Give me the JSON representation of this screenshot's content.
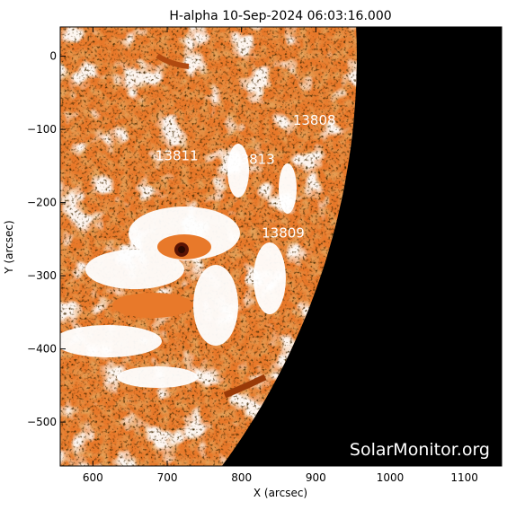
{
  "title": "H-alpha 10-Sep-2024 06:03:16.000",
  "xlabel": "X (arcsec)",
  "ylabel": "Y (arcsec)",
  "xlim": [
    556,
    1150
  ],
  "ylim": [
    -560,
    40
  ],
  "xticks": [
    600,
    700,
    800,
    900,
    1000,
    1100
  ],
  "yticks": [
    0,
    -100,
    -200,
    -300,
    -400,
    -500
  ],
  "xtick_labels": [
    "600",
    "700",
    "800",
    "900",
    "1000",
    "1100"
  ],
  "ytick_labels": [
    "0",
    "−100",
    "−200",
    "−300",
    "−400",
    "−500"
  ],
  "active_regions": [
    {
      "number": "13808",
      "x": 898,
      "y": -94
    },
    {
      "number": "13811",
      "x": 713,
      "y": -142
    },
    {
      "number": "13813",
      "x": 816,
      "y": -147
    },
    {
      "number": "13809",
      "x": 856,
      "y": -248
    }
  ],
  "limb": {
    "radius_arcsec": 955
  },
  "watermark": "SolarMonitor.org",
  "colors": {
    "disk": "#e8792a",
    "disk_dark": "#c85a14",
    "plage": "#ffffff",
    "space": "#000000",
    "frame": "#000000",
    "text": "#ffffff"
  }
}
